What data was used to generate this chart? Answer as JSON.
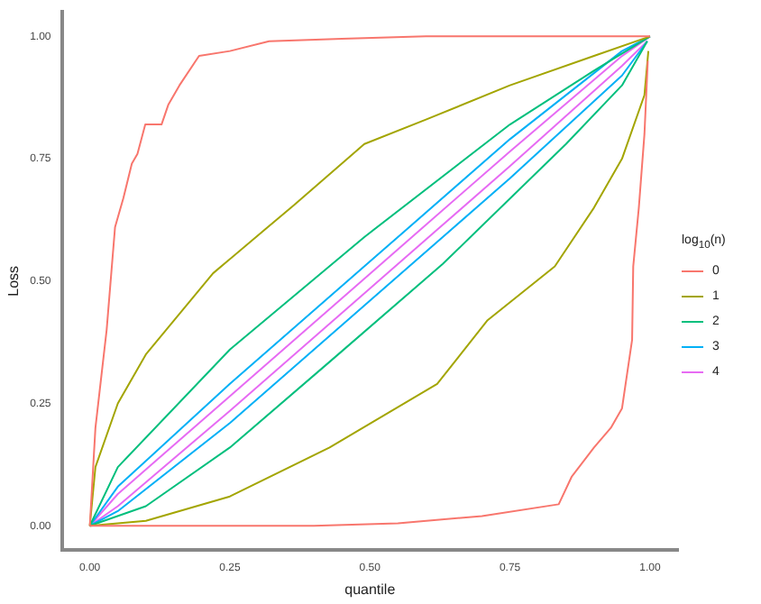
{
  "chart_data": {
    "type": "line",
    "xlabel": "quantile",
    "ylabel": "Loss",
    "legend_title": "log$_{10}$(n)",
    "legend": "right",
    "grid": false,
    "marker": "none",
    "line_style": "solid",
    "xlim": [
      -0.05,
      1.05
    ],
    "ylim": [
      -0.05,
      1.05
    ],
    "xticks": [
      {
        "value": 0,
        "label": "0.00"
      },
      {
        "value": 0.25,
        "label": "0.25"
      },
      {
        "value": 0.5,
        "label": "0.50"
      },
      {
        "value": 0.75,
        "label": "0.75"
      },
      {
        "value": 1,
        "label": "1.00"
      }
    ],
    "yticks": [
      {
        "value": 0,
        "label": "0.00"
      },
      {
        "value": 0.25,
        "label": "0.25"
      },
      {
        "value": 0.5,
        "label": "0.50"
      },
      {
        "value": 0.75,
        "label": "0.75"
      },
      {
        "value": 1,
        "label": "1.00"
      }
    ],
    "series": [
      {
        "name": "0",
        "color": "#f8766d",
        "x": [
          0,
          0.01,
          0.03,
          0.045,
          0.06,
          0.075,
          0.085,
          0.099,
          0.128,
          0.14,
          0.16,
          0.195,
          0.25,
          0.32,
          0.45,
          0.6,
          1
        ],
        "values": [
          0,
          0.2,
          0.4,
          0.61,
          0.67,
          0.74,
          0.76,
          0.82,
          0.82,
          0.86,
          0.9,
          0.96,
          0.97,
          0.99,
          0.995,
          1,
          1
        ]
      },
      {
        "color": "#f8766d",
        "x": [
          0,
          0.4,
          0.55,
          0.7,
          0.837,
          0.86,
          0.9,
          0.93,
          0.95,
          0.968,
          0.97,
          0.98,
          0.99,
          0.996
        ],
        "values": [
          0,
          0,
          0.005,
          0.02,
          0.044,
          0.1,
          0.16,
          0.2,
          0.24,
          0.38,
          0.53,
          0.65,
          0.8,
          0.95
        ]
      },
      {
        "name": "1",
        "color": "#a3a500",
        "x": [
          0,
          0.01,
          0.05,
          0.1,
          0.22,
          0.364,
          0.49,
          0.6,
          0.75,
          0.9,
          1
        ],
        "values": [
          0,
          0.12,
          0.25,
          0.35,
          0.516,
          0.655,
          0.78,
          0.83,
          0.9,
          0.96,
          1
        ]
      },
      {
        "color": "#a3a500",
        "x": [
          0,
          0.1,
          0.25,
          0.428,
          0.62,
          0.71,
          0.83,
          0.9,
          0.95,
          0.99,
          0.997
        ],
        "values": [
          0,
          0.01,
          0.06,
          0.16,
          0.29,
          0.42,
          0.53,
          0.65,
          0.75,
          0.88,
          0.97
        ]
      },
      {
        "name": "2",
        "color": "#00bf7d",
        "x": [
          0,
          0.05,
          0.25,
          0.49,
          0.75,
          0.9,
          1
        ],
        "values": [
          0,
          0.12,
          0.36,
          0.59,
          0.82,
          0.93,
          1
        ]
      },
      {
        "color": "#00bf7d",
        "x": [
          0,
          0.1,
          0.25,
          0.428,
          0.63,
          0.85,
          0.95,
          0.995
        ],
        "values": [
          0,
          0.04,
          0.16,
          0.335,
          0.535,
          0.78,
          0.9,
          0.99
        ]
      },
      {
        "name": "3",
        "color": "#00b0f6",
        "x": [
          0,
          0.05,
          0.25,
          0.5,
          0.75,
          0.95,
          1
        ],
        "values": [
          0,
          0.08,
          0.29,
          0.54,
          0.79,
          0.97,
          1
        ]
      },
      {
        "color": "#00b0f6",
        "x": [
          0,
          0.05,
          0.25,
          0.5,
          0.75,
          0.95,
          0.995
        ],
        "values": [
          0,
          0.03,
          0.21,
          0.46,
          0.71,
          0.92,
          0.99
        ]
      },
      {
        "name": "4",
        "color": "#e76bf3",
        "x": [
          0,
          0.05,
          0.25,
          0.5,
          0.75,
          0.95,
          1
        ],
        "values": [
          0,
          0.065,
          0.265,
          0.515,
          0.765,
          0.96,
          1
        ]
      },
      {
        "color": "#e76bf3",
        "x": [
          0,
          0.05,
          0.25,
          0.5,
          0.75,
          0.95,
          0.995
        ],
        "values": [
          0,
          0.04,
          0.235,
          0.485,
          0.735,
          0.94,
          0.99
        ]
      }
    ]
  }
}
